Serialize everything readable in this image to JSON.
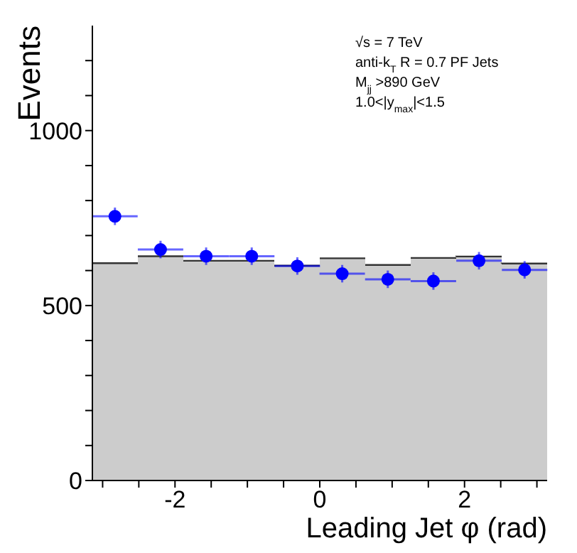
{
  "chart_data": {
    "type": "histogram",
    "xlabel": "Leading Jet φ (rad)",
    "ylabel": "Events",
    "annotations": [
      "√s = 7 TeV",
      "anti-k$_{T}$ R = 0.7 PF Jets",
      "M$_{jj}$ >890 GeV",
      "1.0<|y$_{max}$|<1.5"
    ],
    "bins": [
      -3.1416,
      -2.5133,
      -1.885,
      -1.2566,
      -0.6283,
      0,
      0.6283,
      1.2566,
      1.885,
      2.5133,
      3.1416
    ],
    "series": [
      {
        "color": "#cccccc",
        "values": [
          621,
          641,
          628,
          628,
          614,
          635,
          616,
          636,
          640,
          620
        ]
      },
      {
        "type": "scatter",
        "color": "#0000ff",
        "x": [
          -2.83,
          -2.2,
          -1.57,
          -0.94,
          -0.31,
          0.31,
          0.94,
          1.57,
          2.2,
          2.83
        ],
        "values": [
          755,
          660,
          641,
          641,
          613,
          591,
          575,
          570,
          628,
          602
        ],
        "errors": [
          25,
          25,
          25,
          25,
          25,
          25,
          25,
          25,
          25,
          25
        ],
        "xerrors": [
          0.314,
          0.314,
          0.314,
          0.314,
          0.314,
          0.314,
          0.314,
          0.314,
          0.314,
          0.314
        ]
      }
    ],
    "xlim": [
      -3.1416,
      3.1416
    ],
    "ylim": [
      0,
      1300
    ],
    "xticks": [
      {
        "value": -3,
        "label": null
      },
      {
        "value": -2.5,
        "label": null
      },
      -2,
      {
        "value": -1.5,
        "label": null
      },
      {
        "value": -1,
        "label": null
      },
      {
        "value": -0.5,
        "label": null
      },
      0,
      {
        "value": 0.5,
        "label": null
      },
      {
        "value": 1,
        "label": null
      },
      {
        "value": 1.5,
        "label": null
      },
      2,
      {
        "value": 2.5,
        "label": null
      },
      {
        "value": 3,
        "label": null
      }
    ],
    "yticks": [
      0,
      {
        "value": 100,
        "label": null
      },
      {
        "value": 200,
        "label": null
      },
      {
        "value": 300,
        "label": null
      },
      {
        "value": 400,
        "label": null
      },
      500,
      {
        "value": 600,
        "label": null
      },
      {
        "value": 700,
        "label": null
      },
      {
        "value": 800,
        "label": null
      },
      {
        "value": 900,
        "label": null
      },
      1000,
      {
        "value": 1100,
        "label": null
      },
      {
        "value": 1200,
        "label": null
      }
    ],
    "marker": "circle",
    "legend": false
  }
}
